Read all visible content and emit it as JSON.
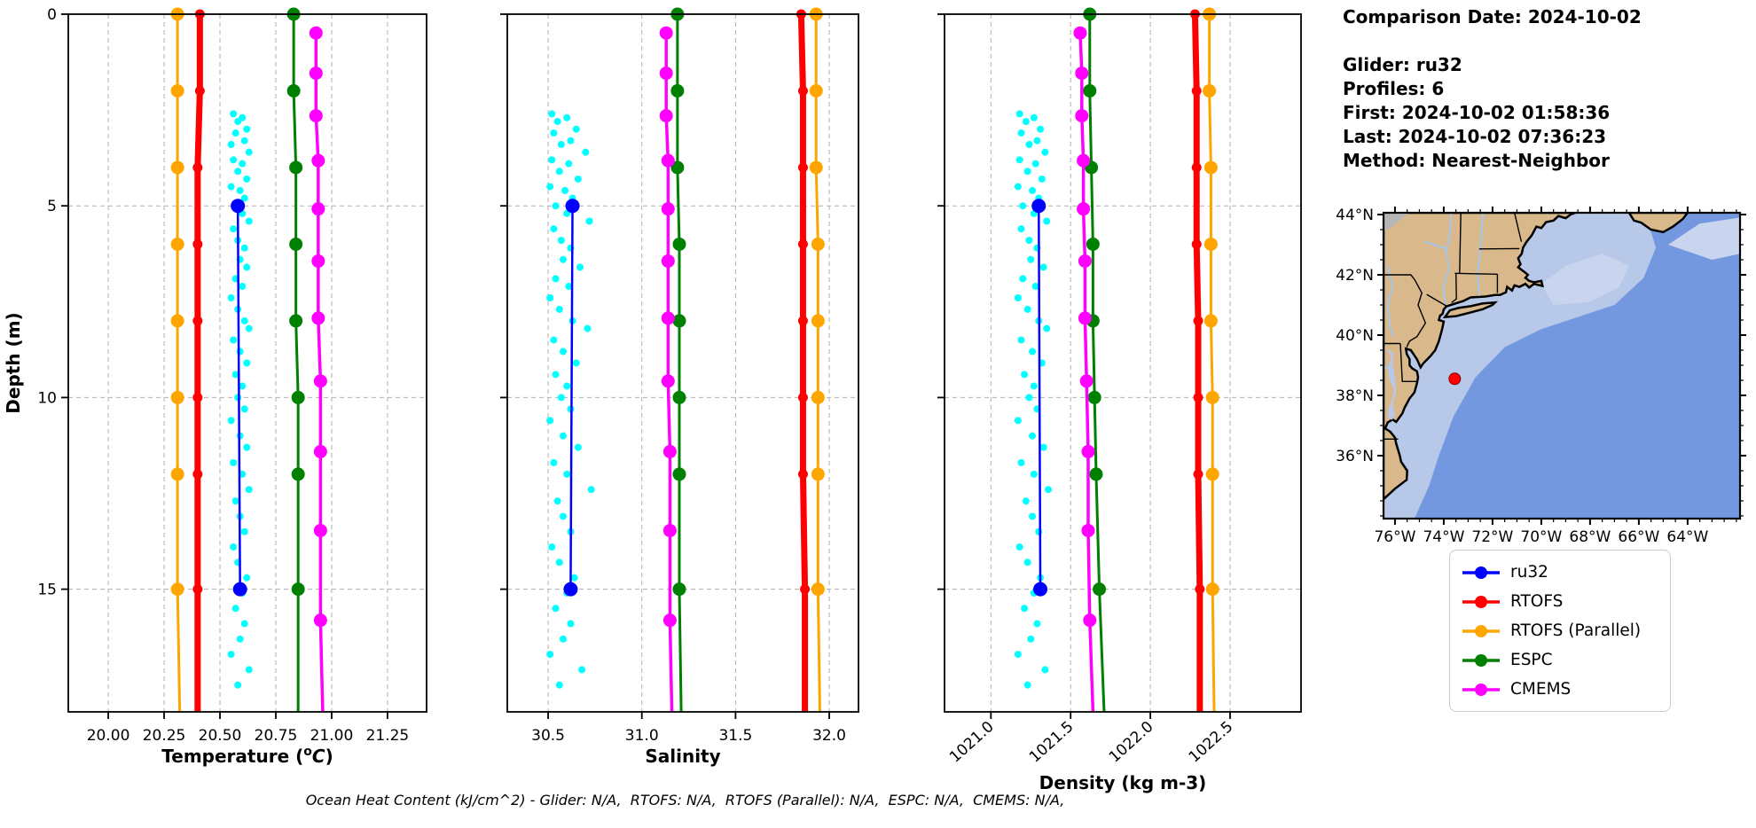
{
  "info_panel": {
    "lines": [
      "Comparison Date: 2024-10-02",
      "",
      "Glider: ru32",
      "Profiles: 6",
      "First: 2024-10-02 01:58:36",
      "Last: 2024-10-02 07:36:23",
      "Method: Nearest-Neighbor"
    ]
  },
  "caption": {
    "text": "Ocean Heat Content (kJ/cm^2) - Glider: N/A,  RTOFS: N/A,  RTOFS (Parallel): N/A,  ESPC: N/A,  CMEMS: N/A,"
  },
  "chart_data": {
    "type": "line",
    "description": "Glider vs model vertical profile comparison (temperature, salinity, density vs depth)",
    "depth_axis": {
      "label": "Depth (m)",
      "ticks": [
        0,
        5,
        10,
        15
      ],
      "lim": [
        0,
        18.2
      ],
      "grid": true
    },
    "series_meta": [
      {
        "id": "ru32",
        "label": "ru32",
        "color": "#0000ff",
        "lw": 2.5,
        "r": 8
      },
      {
        "id": "rtofs",
        "label": "RTOFS",
        "color": "#ff0000",
        "lw": 7,
        "r": 5.5
      },
      {
        "id": "rtofs_parallel",
        "label": "RTOFS (Parallel)",
        "color": "#ffa500",
        "lw": 3,
        "r": 7.5
      },
      {
        "id": "espc",
        "label": "ESPC",
        "color": "#008000",
        "lw": 3,
        "r": 7.5
      },
      {
        "id": "cmems",
        "label": "CMEMS",
        "color": "#ff00ff",
        "lw": 3.5,
        "r": 7.5
      }
    ],
    "scatter_meta": {
      "id": "glider_raw",
      "color": "#00ffff",
      "r": 4
    },
    "model_depths": [
      0,
      2,
      4,
      6,
      8,
      10,
      12,
      15,
      18.2
    ],
    "model_marker_count": 8,
    "cmems_depths": [
      0.49,
      1.54,
      2.65,
      3.82,
      5.08,
      6.44,
      7.93,
      9.57,
      11.41,
      13.47,
      15.81,
      18.2
    ],
    "cmems_marker_count": 11,
    "ru32_depths": [
      5,
      15
    ],
    "scatter_depths": [
      2.6,
      2.7,
      2.8,
      3.0,
      3.1,
      3.3,
      3.4,
      3.6,
      3.8,
      3.9,
      4.1,
      4.3,
      4.5,
      4.6,
      4.8,
      5.0,
      5.2,
      5.4,
      5.6,
      5.9,
      6.1,
      6.4,
      6.6,
      6.9,
      7.1,
      7.4,
      7.7,
      8.0,
      8.2,
      8.5,
      8.8,
      9.1,
      9.4,
      9.7,
      10.0,
      10.3,
      10.6,
      11.0,
      11.3,
      11.7,
      12.0,
      12.4,
      12.7,
      13.1,
      13.5,
      13.9,
      14.3,
      14.7,
      15.1,
      15.5,
      15.9,
      16.3,
      16.7,
      17.1,
      17.5
    ],
    "subplots": [
      {
        "id": "temperature",
        "xlabel_parts": [
          {
            "t": "Temperature ("
          },
          {
            "sup": "o"
          },
          {
            "it": "C"
          },
          {
            "t": ")"
          }
        ],
        "xlim": [
          19.821,
          21.425
        ],
        "xticks": [
          20.0,
          20.25,
          20.5,
          20.75,
          21.0,
          21.25
        ],
        "xtick_labels": [
          "20.00",
          "20.25",
          "20.50",
          "20.75",
          "21.00",
          "21.25"
        ],
        "rotate_ticks": false,
        "ru32": [
          20.58,
          20.59
        ],
        "rtofs": [
          20.41,
          20.41,
          20.4,
          20.4,
          20.4,
          20.4,
          20.4,
          20.4,
          20.4
        ],
        "rtofs_parallel": [
          20.31,
          20.31,
          20.31,
          20.31,
          20.31,
          20.31,
          20.31,
          20.31,
          20.32
        ],
        "espc": [
          20.83,
          20.83,
          20.84,
          20.84,
          20.84,
          20.85,
          20.85,
          20.85,
          20.85
        ],
        "cmems": [
          20.93,
          20.93,
          20.93,
          20.94,
          20.94,
          20.94,
          20.94,
          20.95,
          20.95,
          20.95,
          20.95,
          20.96
        ],
        "scatter": [
          20.56,
          20.6,
          20.58,
          20.62,
          20.57,
          20.61,
          20.55,
          20.63,
          20.56,
          20.6,
          20.58,
          20.62,
          20.55,
          20.59,
          20.61,
          20.57,
          20.6,
          20.63,
          20.56,
          20.58,
          20.61,
          20.59,
          20.62,
          20.57,
          20.6,
          20.55,
          20.58,
          20.61,
          20.63,
          20.56,
          20.59,
          20.62,
          20.57,
          20.6,
          20.58,
          20.61,
          20.55,
          20.59,
          20.62,
          20.56,
          20.6,
          20.63,
          20.57,
          20.59,
          20.61,
          20.56,
          20.58,
          20.62,
          20.6,
          20.57,
          20.61,
          20.59,
          20.55,
          20.63,
          20.58
        ]
      },
      {
        "id": "salinity",
        "xlabel_parts": [
          {
            "t": "Salinity"
          }
        ],
        "xlim": [
          30.282,
          32.156
        ],
        "xticks": [
          30.5,
          31.0,
          31.5,
          32.0
        ],
        "xtick_labels": [
          "30.5",
          "31.0",
          "31.5",
          "32.0"
        ],
        "rotate_ticks": false,
        "ru32": [
          30.63,
          30.62
        ],
        "rtofs": [
          31.85,
          31.86,
          31.86,
          31.86,
          31.86,
          31.86,
          31.86,
          31.87,
          31.87
        ],
        "rtofs_parallel": [
          31.93,
          31.93,
          31.93,
          31.94,
          31.94,
          31.94,
          31.94,
          31.94,
          31.95
        ],
        "espc": [
          31.19,
          31.19,
          31.19,
          31.2,
          31.2,
          31.2,
          31.2,
          31.2,
          31.21
        ],
        "cmems": [
          31.13,
          31.13,
          31.13,
          31.14,
          31.14,
          31.14,
          31.14,
          31.14,
          31.15,
          31.15,
          31.15,
          31.16
        ],
        "scatter": [
          30.52,
          30.6,
          30.55,
          30.65,
          30.53,
          30.62,
          30.57,
          30.7,
          30.52,
          30.61,
          30.56,
          30.66,
          30.51,
          30.59,
          30.63,
          30.54,
          30.6,
          30.72,
          30.53,
          30.57,
          30.62,
          30.58,
          30.67,
          30.54,
          30.61,
          30.51,
          30.56,
          30.63,
          30.71,
          30.53,
          30.58,
          30.65,
          30.54,
          30.6,
          30.57,
          30.62,
          30.51,
          30.58,
          30.66,
          30.53,
          30.6,
          30.73,
          30.55,
          30.58,
          30.62,
          30.52,
          30.56,
          30.64,
          30.6,
          30.54,
          30.62,
          30.58,
          30.51,
          30.68,
          30.56
        ]
      },
      {
        "id": "density",
        "xlabel_parts": [
          {
            "t": "Density (kg m-3)"
          }
        ],
        "xlim": [
          1020.709,
          1022.945
        ],
        "xticks": [
          1021.0,
          1021.5,
          1022.0,
          1022.5
        ],
        "xtick_labels": [
          "1021.0",
          "1021.5",
          "1022.0",
          "1022.5"
        ],
        "rotate_ticks": true,
        "ru32": [
          1021.3,
          1021.31
        ],
        "rtofs": [
          1022.28,
          1022.29,
          1022.29,
          1022.29,
          1022.3,
          1022.3,
          1022.3,
          1022.31,
          1022.31
        ],
        "rtofs_parallel": [
          1022.37,
          1022.37,
          1022.38,
          1022.38,
          1022.38,
          1022.39,
          1022.39,
          1022.39,
          1022.4
        ],
        "espc": [
          1021.62,
          1021.62,
          1021.63,
          1021.64,
          1021.64,
          1021.65,
          1021.66,
          1021.68,
          1021.71
        ],
        "cmems": [
          1021.56,
          1021.57,
          1021.57,
          1021.58,
          1021.58,
          1021.59,
          1021.59,
          1021.6,
          1021.61,
          1021.61,
          1021.62,
          1021.64
        ],
        "scatter": [
          1021.18,
          1021.27,
          1021.22,
          1021.31,
          1021.19,
          1021.29,
          1021.24,
          1021.34,
          1021.18,
          1021.28,
          1021.23,
          1021.32,
          1021.17,
          1021.26,
          1021.3,
          1021.2,
          1021.27,
          1021.35,
          1021.19,
          1021.24,
          1021.29,
          1021.25,
          1021.33,
          1021.2,
          1021.28,
          1021.17,
          1021.23,
          1021.3,
          1021.35,
          1021.19,
          1021.26,
          1021.32,
          1021.21,
          1021.27,
          1021.24,
          1021.29,
          1021.17,
          1021.26,
          1021.33,
          1021.19,
          1021.27,
          1021.36,
          1021.22,
          1021.26,
          1021.3,
          1021.18,
          1021.23,
          1021.31,
          1021.27,
          1021.21,
          1021.29,
          1021.25,
          1021.17,
          1021.34,
          1021.23
        ]
      }
    ]
  },
  "map": {
    "lon_lim": [
      -76.47,
      -61.85
    ],
    "lat_lim": [
      33.91,
      44.06
    ],
    "lat_ticks": [
      {
        "v": 44,
        "label": "44°N"
      },
      {
        "v": 42,
        "label": "42°N"
      },
      {
        "v": 40,
        "label": "40°N"
      },
      {
        "v": 38,
        "label": "38°N"
      },
      {
        "v": 36,
        "label": "36°N"
      }
    ],
    "lon_ticks": [
      {
        "v": -76,
        "label": "76°W"
      },
      {
        "v": -74,
        "label": "74°W"
      },
      {
        "v": -72,
        "label": "72°W"
      },
      {
        "v": -70,
        "label": "70°W"
      },
      {
        "v": -68,
        "label": "68°W"
      },
      {
        "v": -66,
        "label": "66°W"
      },
      {
        "v": -64,
        "label": "64°W"
      }
    ],
    "glider_location": {
      "lat": 38.55,
      "lon": -73.55
    },
    "colors": {
      "ocean_deep": "#7398e0",
      "shelf": "#b7c8e8",
      "shelf_light": "#c9d5ee",
      "land": "#d9b88c",
      "outside": "#b5b5b5",
      "river": "#a4c6ea",
      "coast": "#000000",
      "marker": "#ff0000"
    }
  }
}
